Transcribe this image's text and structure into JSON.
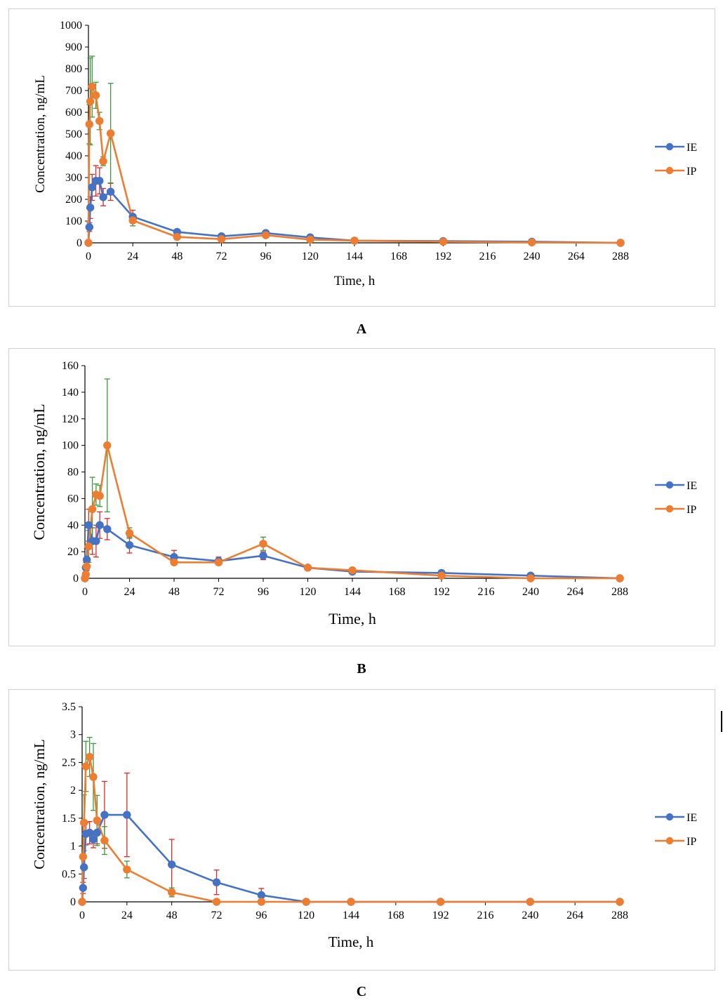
{
  "colors": {
    "IE": "#4472c4",
    "IP": "#ed7d31",
    "err_red": "#d92b2b",
    "err_green": "#3a9a3a"
  },
  "chart_data": [
    {
      "type": "line",
      "panel_label": "A",
      "ylabel": "Concentration, ng/mL",
      "xlabel": "Time, h",
      "xlim": [
        0,
        288
      ],
      "ylim": [
        0,
        1000
      ],
      "x_ticks": [
        0,
        24,
        48,
        72,
        96,
        120,
        144,
        168,
        192,
        216,
        240,
        264,
        288
      ],
      "y_ticks": [
        0,
        100,
        200,
        300,
        400,
        500,
        600,
        700,
        800,
        900,
        1000
      ],
      "y_tick_labels": [
        "0",
        "100",
        "200",
        "300",
        "400",
        "500",
        "600",
        "700",
        "800",
        "900",
        "1000"
      ],
      "legend": [
        "IE",
        "IP"
      ],
      "legend_position": "right",
      "series": [
        {
          "name": "IE",
          "x": [
            0,
            0.5,
            1,
            2,
            4,
            6,
            8,
            12,
            24,
            48,
            72,
            96,
            120,
            144,
            192,
            240,
            288
          ],
          "y": [
            0,
            72,
            162,
            255,
            285,
            285,
            210,
            235,
            120,
            50,
            30,
            45,
            25,
            10,
            8,
            5,
            0
          ],
          "err": [
            0,
            20,
            50,
            60,
            70,
            60,
            40,
            40,
            30,
            0,
            0,
            0,
            0,
            0,
            0,
            0,
            0
          ]
        },
        {
          "name": "IP",
          "x": [
            0,
            0.5,
            1,
            2,
            4,
            6,
            8,
            12,
            24,
            48,
            72,
            96,
            120,
            144,
            192,
            240,
            288
          ],
          "y": [
            0,
            545,
            650,
            718,
            678,
            560,
            375,
            503,
            103,
            27,
            17,
            35,
            15,
            10,
            5,
            2,
            0
          ],
          "err": [
            0,
            90,
            200,
            140,
            60,
            40,
            20,
            230,
            25,
            0,
            0,
            0,
            0,
            0,
            0,
            0,
            0
          ]
        }
      ]
    },
    {
      "type": "line",
      "panel_label": "B",
      "ylabel": "Concentration, ng/mL",
      "xlabel": "Time, h",
      "xlim": [
        0,
        288
      ],
      "ylim": [
        0,
        160
      ],
      "x_ticks": [
        0,
        24,
        48,
        72,
        96,
        120,
        144,
        168,
        192,
        216,
        240,
        264,
        288
      ],
      "y_ticks": [
        0,
        20,
        40,
        60,
        80,
        100,
        120,
        140,
        160
      ],
      "y_tick_labels": [
        "0",
        "20",
        "40",
        "60",
        "80",
        "100",
        "120",
        "140",
        "160"
      ],
      "legend": [
        "IE",
        "IP"
      ],
      "legend_position": "right",
      "series": [
        {
          "name": "IE",
          "x": [
            0,
            0.5,
            1,
            2,
            4,
            6,
            8,
            12,
            24,
            48,
            72,
            96,
            120,
            144,
            192,
            240,
            288
          ],
          "y": [
            0,
            8,
            14,
            40,
            28,
            28,
            40,
            37,
            25,
            16,
            13,
            17,
            8,
            5,
            4,
            2,
            0
          ],
          "err": [
            0,
            4,
            8,
            12,
            10,
            12,
            10,
            8,
            6,
            5,
            3,
            3,
            1,
            0,
            0,
            0,
            0
          ]
        },
        {
          "name": "IP",
          "x": [
            0,
            0.5,
            1,
            2,
            4,
            6,
            8,
            12,
            24,
            48,
            72,
            96,
            120,
            144,
            192,
            240,
            288
          ],
          "y": [
            0,
            3,
            9,
            24,
            52,
            63,
            62,
            100,
            34,
            12,
            12,
            26,
            8,
            6,
            2,
            0,
            0
          ],
          "err": [
            0,
            2,
            6,
            12,
            24,
            8,
            8,
            50,
            4,
            0,
            0,
            5,
            0,
            0,
            0,
            0,
            0
          ]
        }
      ]
    },
    {
      "type": "line",
      "panel_label": "C",
      "ylabel": "Concentration, ng/mL",
      "xlabel": "Time, h",
      "xlim": [
        0,
        288
      ],
      "ylim": [
        0,
        3.5
      ],
      "x_ticks": [
        0,
        24,
        48,
        72,
        96,
        120,
        144,
        168,
        192,
        216,
        240,
        264,
        288
      ],
      "y_ticks": [
        0,
        0.5,
        1,
        1.5,
        2,
        2.5,
        3,
        3.5
      ],
      "y_tick_labels": [
        "0",
        "0.5",
        "1",
        "1.5",
        "2",
        "2.5",
        "3",
        "3.5"
      ],
      "legend": [
        "IE",
        "IP"
      ],
      "legend_position": "right",
      "series": [
        {
          "name": "IE",
          "x": [
            0,
            0.5,
            1,
            2,
            4,
            6,
            8,
            12,
            24,
            48,
            72,
            96,
            120,
            144,
            192,
            240,
            288
          ],
          "y": [
            0,
            0.25,
            0.62,
            1.22,
            1.24,
            1.12,
            1.24,
            1.56,
            1.56,
            0.67,
            0.35,
            0.12,
            0,
            0,
            0,
            0,
            0
          ],
          "err": [
            0,
            0.1,
            0.2,
            0.2,
            0.2,
            0.15,
            0.2,
            0.6,
            0.75,
            0.45,
            0.22,
            0.12,
            0,
            0,
            0,
            0,
            0
          ]
        },
        {
          "name": "IP",
          "x": [
            0,
            0.5,
            1,
            2,
            4,
            6,
            8,
            12,
            24,
            48,
            72,
            96,
            120,
            144,
            192,
            240,
            288
          ],
          "y": [
            0,
            0.81,
            1.42,
            2.43,
            2.6,
            2.24,
            1.46,
            1.1,
            0.58,
            0.17,
            0,
            0,
            0,
            0,
            0,
            0,
            0
          ],
          "err": [
            0,
            0.2,
            0.5,
            0.45,
            0.35,
            0.6,
            0.45,
            0.25,
            0.15,
            0.08,
            0,
            0,
            0,
            0,
            0,
            0,
            0
          ]
        }
      ]
    }
  ]
}
